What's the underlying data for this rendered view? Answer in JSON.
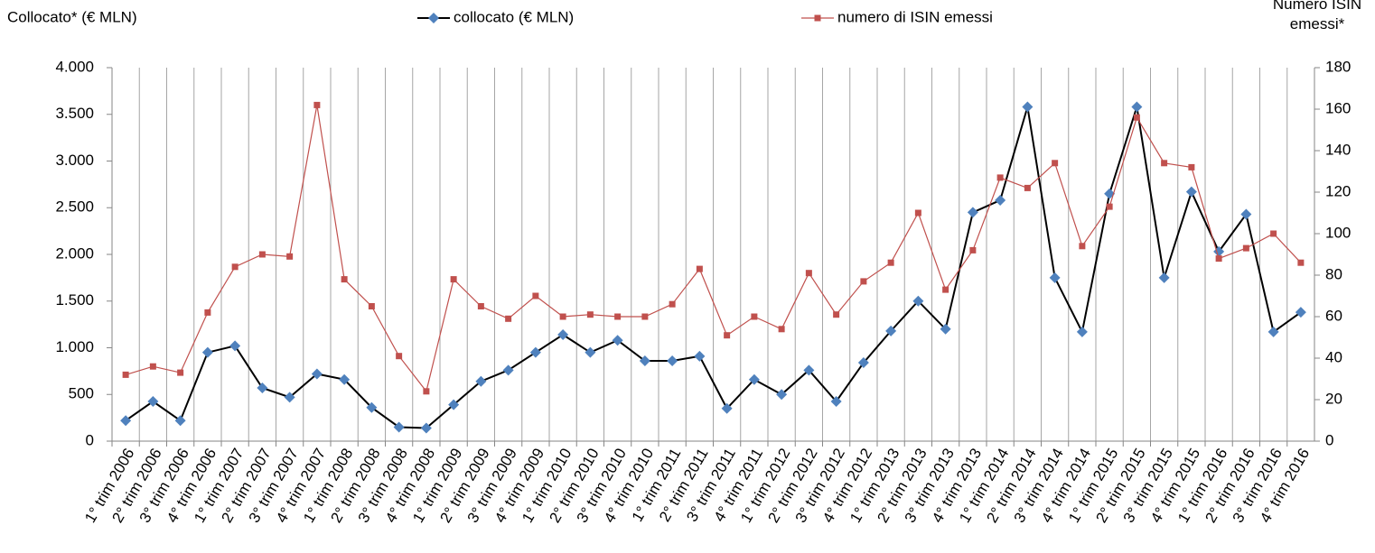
{
  "chart_data": {
    "type": "line",
    "ylabel": "Collocato* (€ MLN)",
    "y2label": "Numero ISIN emessi*",
    "categories": [
      "1° trim 2006",
      "2° trim 2006",
      "3° trim 2006",
      "4° trim 2006",
      "1° trim 2007",
      "2° trim 2007",
      "3° trim 2007",
      "4° trim 2007",
      "1° trim 2008",
      "2° trim 2008",
      "3° trim 2008",
      "4° trim 2008",
      "1° trim 2009",
      "2° trim 2009",
      "3° trim 2009",
      "4° trim 2009",
      "1° trim 2010",
      "2° trim 2010",
      "3° trim 2010",
      "4° trim 2010",
      "1° trim 2011",
      "2° trim 2011",
      "3° trim 2011",
      "4° trim 2011",
      "1° trim 2012",
      "2° trim 2012",
      "3° trim 2012",
      "4° trim 2012",
      "1° trim 2013",
      "2° trim 2013",
      "3° trim 2013",
      "4° trim 2013",
      "1° trim 2014",
      "2° trim 2014",
      "3° trim 2014",
      "4° trim 2014",
      "1° trim 2015",
      "2° trim 2015",
      "3° trim 2015",
      "4° trim 2015",
      "1° trim 2016",
      "2° trim 2016",
      "3° trim 2016",
      "4° trim 2016"
    ],
    "series": [
      {
        "name": "collocato (€ MLN)",
        "color": "#000000",
        "marker": "diamond",
        "marker_color": "#4f81bd",
        "values": [
          220,
          425,
          220,
          950,
          1020,
          570,
          470,
          720,
          660,
          360,
          150,
          140,
          390,
          640,
          760,
          950,
          1140,
          950,
          1080,
          860,
          860,
          910,
          350,
          660,
          500,
          760,
          425,
          840,
          1180,
          1500,
          1200,
          2450,
          2580,
          3580,
          1750,
          1170,
          2650,
          3580,
          1750,
          2670,
          2030,
          2430,
          1170,
          1380
        ]
      },
      {
        "name": "numero di ISIN emessi",
        "color": "#c0504d",
        "marker": "square",
        "marker_color": "#c0504d",
        "axis": "y2",
        "values": [
          32,
          36,
          33,
          62,
          84,
          90,
          89,
          162,
          78,
          65,
          41,
          24,
          78,
          65,
          59,
          70,
          60,
          61,
          60,
          60,
          66,
          83,
          51,
          60,
          54,
          81,
          61,
          77,
          86,
          110,
          73,
          92,
          127,
          122,
          134,
          94,
          113,
          156,
          134,
          132,
          88,
          93,
          100,
          86
        ]
      }
    ],
    "ylim": [
      0,
      4000
    ],
    "yticks": [
      0,
      500,
      {
        "value": 1000,
        "label": "1.000"
      },
      {
        "value": 1500,
        "label": "1.500"
      },
      {
        "value": 2000,
        "label": "2.000"
      },
      {
        "value": 2500,
        "label": "2.500"
      },
      {
        "value": 3000,
        "label": "3.000"
      },
      {
        "value": 3500,
        "label": "3.500"
      },
      {
        "value": 4000,
        "label": "4.000"
      }
    ],
    "y2lim": [
      0,
      180
    ],
    "y2ticks": [
      0,
      20,
      40,
      60,
      80,
      100,
      120,
      140,
      160,
      180
    ],
    "grid": "x",
    "legend": "top"
  }
}
